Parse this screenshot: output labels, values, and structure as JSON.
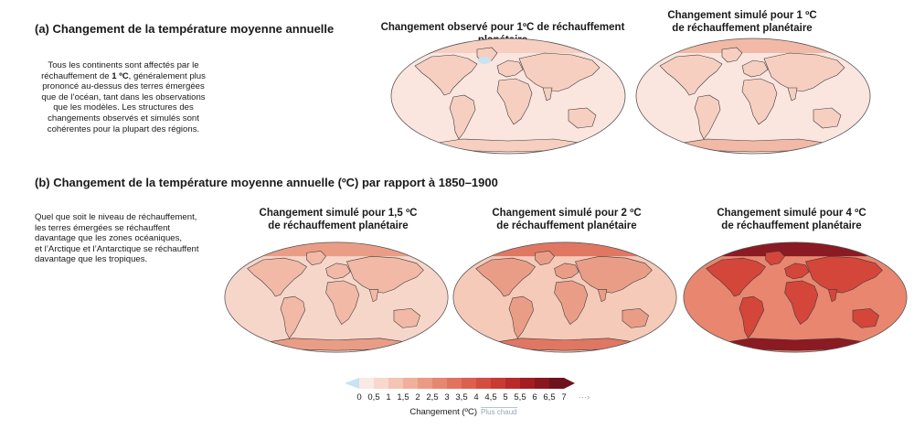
{
  "section_a": {
    "title": "(a) Changement de la température moyenne annuelle",
    "desc_l1": "Tous les continents sont affectés par le",
    "desc_l2a": "réchauffement de ",
    "desc_l2b": "1 ºC",
    "desc_l2c": ", généralement plus",
    "desc_l3": "prononcé au-dessus des terres émergées",
    "desc_l4": "que de l’océan, tant dans les observations",
    "desc_l5": "que les modèles. Les structures des",
    "desc_l6": "changements observés et simulés sont",
    "desc_l7": "cohérentes pour la plupart des régions."
  },
  "maps_a": [
    {
      "line1a": "Changement observé pour ",
      "line1b": "1ºC",
      "line1c": " de réchauffement planétaire",
      "line2": ""
    },
    {
      "line1a": "Changement simulé pour ",
      "line1b": "1 ºC",
      "line1c": "",
      "line2": "réchauffement planétaire",
      "line2_prefix": "de "
    }
  ],
  "section_b": {
    "title": "(b) Changement de la température moyenne annuelle (ºC) par rapport à 1850–1900",
    "desc_l1": "Quel que soit le niveau de réchauffement,",
    "desc_l2": "les terres émergées se réchauffent",
    "desc_l3": "davantage que les zones océaniques,",
    "desc_l4": "et l’Arctique et l’Antarctique se réchauffent",
    "desc_l5": "davantage que les tropiques."
  },
  "maps_b": [
    {
      "line1a": "Changement simulé pour ",
      "line1b": "1,5 ºC",
      "line2": "de réchauffement planétaire"
    },
    {
      "line1a": "Changement simulé pour ",
      "line1b": "2 ºC",
      "line2": "de réchauffement planétaire"
    },
    {
      "line1a": "Changement simulé pour ",
      "line1b": "4 ºC",
      "line2": "de réchauffement planétaire"
    }
  ],
  "legend": {
    "ticks": [
      "0",
      "0,5",
      "1",
      "1,5",
      "2",
      "2,5",
      "3",
      "3,5",
      "4",
      "4,5",
      "5",
      "5,5",
      "6",
      "6,5",
      "7"
    ],
    "colors": [
      "#c7e3f4",
      "#fbe9e4",
      "#f8d8cc",
      "#f4c4b4",
      "#f0af9d",
      "#eb9a86",
      "#e68772",
      "#e1735f",
      "#db604f",
      "#d34d40",
      "#c83b34",
      "#b92a2a",
      "#a31d23",
      "#8a1620",
      "#6e121c"
    ],
    "caption": "Changement (ºC)",
    "warmer": "Plus chaud"
  },
  "colors": {
    "ocean_1": "#fbe6df",
    "land_1": "#f6cfc1",
    "ocean_15": "#f7d6ca",
    "land_15": "#f1b9a6",
    "ocean_2": "#f5cab9",
    "land_2": "#ea9d86",
    "arctic_2": "#e07763",
    "ocean_4": "#e8866f",
    "land_4": "#d4453a",
    "arctic_4": "#8b1a22",
    "cold_spot": "#c7e3f4"
  }
}
